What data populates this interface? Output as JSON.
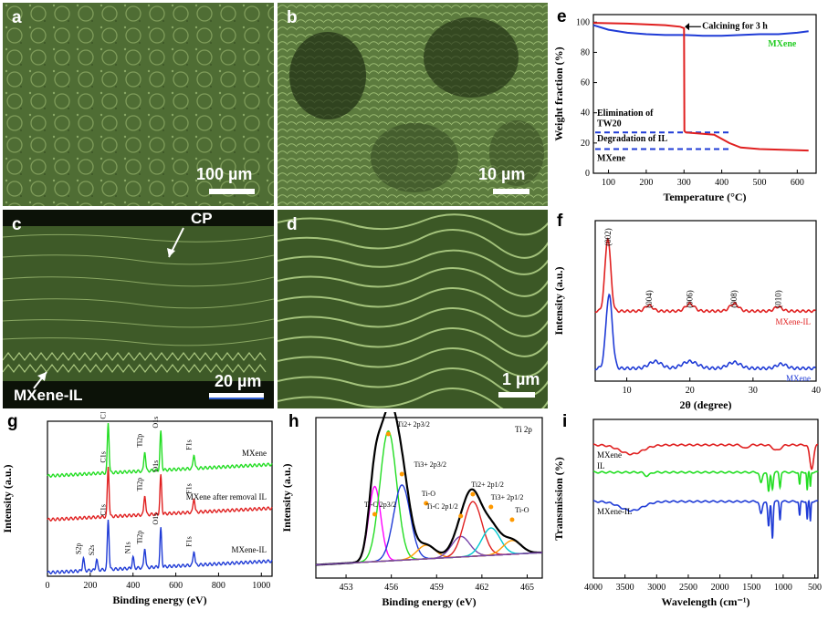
{
  "panels": {
    "a": {
      "letter": "a",
      "scale": "100 µm"
    },
    "b": {
      "letter": "b",
      "scale": "10 µm"
    },
    "c": {
      "letter": "c",
      "scale": "20 µm",
      "cp_label": "CP",
      "film_label": "MXene-IL"
    },
    "d": {
      "letter": "d",
      "scale": "1 µm"
    }
  },
  "chart_data": [
    {
      "panel": "e",
      "type": "line",
      "xlabel": "Temperature (°C)",
      "ylabel": "Weight fraction (%)",
      "xticks": [
        "100",
        "200",
        "300",
        "400",
        "500",
        "600"
      ],
      "yticks": [
        "0",
        "20",
        "40",
        "60",
        "80",
        "100"
      ],
      "xlim": [
        60,
        650
      ],
      "ylim": [
        0,
        105
      ],
      "series": [
        {
          "name": "MXene",
          "color": "#1f3bd6",
          "x": [
            60,
            100,
            150,
            200,
            250,
            300,
            350,
            400,
            450,
            500,
            550,
            600,
            630
          ],
          "y": [
            98,
            95,
            93,
            92,
            91.5,
            91.5,
            91,
            91,
            91.5,
            92,
            92,
            93,
            94
          ]
        },
        {
          "color": "#e02020",
          "x": [
            60,
            150,
            250,
            290,
            300,
            301,
            305,
            330,
            380,
            420,
            450,
            500,
            560,
            630
          ],
          "y": [
            99.5,
            99,
            98,
            97,
            96,
            28,
            27,
            26.5,
            25.5,
            20,
            17,
            16,
            15.5,
            15
          ]
        }
      ],
      "annotations": {
        "calcining": "Calcining for 3 h",
        "mxene_legend": "MXene",
        "elimination_1": "Elimination of",
        "elimination_2": "TW20",
        "degradation": "Degradation of IL",
        "mxene_level": "MXene"
      },
      "dashed_levels": [
        27,
        16
      ]
    },
    {
      "panel": "f",
      "type": "line",
      "xlabel": "2θ (degree)",
      "ylabel": "Intensity (a.u.)",
      "xticks": [
        "10",
        "20",
        "30",
        "40"
      ],
      "xlim": [
        5,
        40
      ],
      "peak_labels": [
        "(002)",
        "(004)",
        "(006)",
        "(008)",
        "(010)"
      ],
      "peak_x": [
        7,
        13.5,
        20,
        27,
        34
      ],
      "series": [
        {
          "name": "MXene-IL",
          "color": "#e02020"
        },
        {
          "name": "MXene",
          "color": "#1f3bd6"
        }
      ]
    },
    {
      "panel": "g",
      "type": "line",
      "xlabel": "Binding energy (eV)",
      "ylabel": "Intensity (a.u.)",
      "xticks": [
        "0",
        "200",
        "400",
        "600",
        "800",
        "1000"
      ],
      "xlim": [
        0,
        1050
      ],
      "series": [
        {
          "name": "MXene",
          "color": "#22dd22",
          "peaks": {
            "C1s": 284,
            "Ti2p": 455,
            "O1s": 530,
            "F1s": 685
          }
        },
        {
          "name": "MXene after removal IL",
          "color": "#e02020",
          "peaks": {
            "C1s": 284,
            "Ti2p": 455,
            "O1s": 530,
            "F1s": 685
          }
        },
        {
          "name": "MXene-IL",
          "color": "#1f3bd6",
          "peaks": {
            "S2p": 168,
            "S2s": 230,
            "C1s": 284,
            "N1s": 400,
            "Ti2p": 455,
            "O1s": 530,
            "F1s": 685
          }
        }
      ],
      "peak_labels": {
        "C1s": "C1s",
        "Ti2p": "Ti2p",
        "O1s": "O1s",
        "F1s": "F1s",
        "S2p": "S2p",
        "S2s": "S2s",
        "N1s": "N1s"
      }
    },
    {
      "panel": "h",
      "type": "line",
      "xlabel": "Binding energy (eV)",
      "ylabel": "Intensity (a.u.)",
      "xticks": [
        "453",
        "456",
        "459",
        "462",
        "465"
      ],
      "xlim": [
        451,
        466
      ],
      "region_label": "Ti 2p",
      "components": [
        {
          "label": "Ti-C 2p3/2",
          "center": 454.9,
          "color": "#ff00ff"
        },
        {
          "label": "Ti2+ 2p3/2",
          "center": 455.8,
          "color": "#22dd22"
        },
        {
          "label": "Ti3+ 2p3/2",
          "center": 456.7,
          "color": "#1f3bd6"
        },
        {
          "label": "Ti-O",
          "center": 458.3,
          "color": "#ff9900"
        },
        {
          "label": "Ti-C 2p1/2",
          "center": 460.6,
          "color": "#7744aa"
        },
        {
          "label": "Ti2+ 2p1/2",
          "center": 461.4,
          "color": "#e02020"
        },
        {
          "label": "Ti3+ 2p1/2",
          "center": 462.6,
          "color": "#00c8d0"
        },
        {
          "label": "Ti-O",
          "center": 464.0,
          "color": "#ff9900"
        }
      ]
    },
    {
      "panel": "i",
      "type": "line",
      "xlabel": "Wavelength (cm⁻¹)",
      "ylabel": "Transmission (%)",
      "xticks": [
        "4000",
        "3500",
        "3000",
        "2500",
        "2000",
        "1500",
        "1000",
        "500"
      ],
      "xlim": [
        4000,
        450
      ],
      "series": [
        {
          "name": "MXene",
          "color": "#e02020"
        },
        {
          "name": "IL",
          "color": "#22dd22"
        },
        {
          "name": "MXene-IL",
          "color": "#1f3bd6"
        }
      ]
    }
  ],
  "letters": {
    "e": "e",
    "f": "f",
    "g": "g",
    "h": "h",
    "i": "i"
  }
}
